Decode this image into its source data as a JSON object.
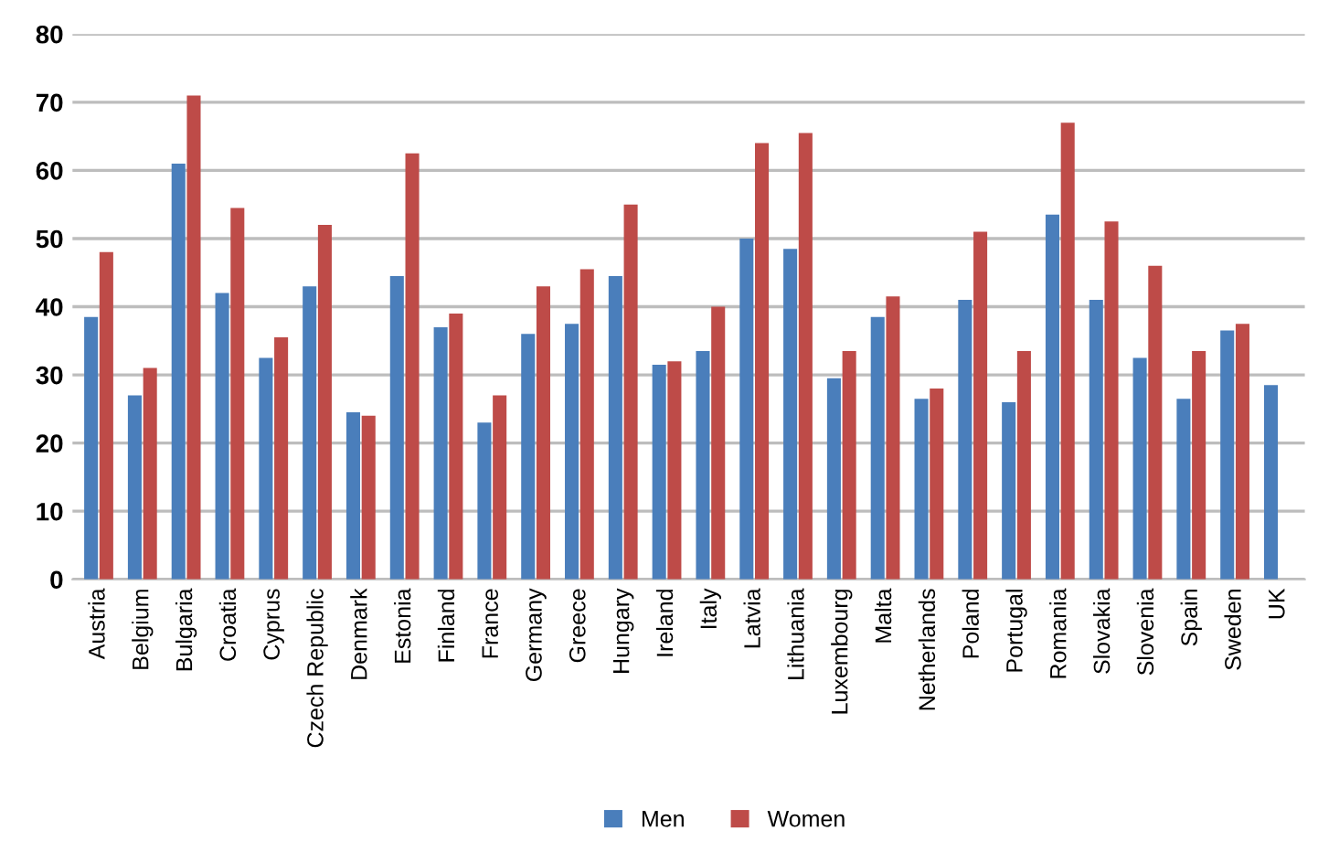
{
  "chart_data": {
    "type": "bar",
    "categories": [
      "Austria",
      "Belgium",
      "Bulgaria",
      "Croatia",
      "Cyprus",
      "Czech Republic",
      "Denmark",
      "Estonia",
      "Finland",
      "France",
      "Germany",
      "Greece",
      "Hungary",
      "Ireland",
      "Italy",
      "Latvia",
      "Lithuania",
      "Luxembourg",
      "Malta",
      "Netherlands",
      "Poland",
      "Portugal",
      "Romania",
      "Slovakia",
      "Slovenia",
      "Spain",
      "Sweden",
      "UK"
    ],
    "series": [
      {
        "name": "Men",
        "color": "#4a7ebb",
        "values": [
          38.5,
          27,
          61,
          42,
          32.5,
          43,
          24.5,
          44.5,
          37,
          23,
          36,
          37.5,
          44.5,
          31.5,
          33.5,
          50,
          48.5,
          29.5,
          38.5,
          26.5,
          41,
          26,
          53.5,
          41,
          32.5,
          26.5,
          36.5,
          28.5
        ]
      },
      {
        "name": "Women",
        "color": "#be4b48",
        "values": [
          48,
          31,
          71,
          54.5,
          35.5,
          52,
          24,
          62.5,
          39,
          27,
          43,
          45.5,
          55,
          32,
          40,
          64,
          65.5,
          33.5,
          41.5,
          28,
          51,
          33.5,
          67,
          52.5,
          46,
          33.5,
          37.5,
          null
        ]
      }
    ],
    "ylim": [
      0,
      80
    ],
    "yticks": [
      0,
      10,
      20,
      30,
      40,
      50,
      60,
      70,
      80
    ],
    "grid": "y",
    "legend": "bottom"
  }
}
